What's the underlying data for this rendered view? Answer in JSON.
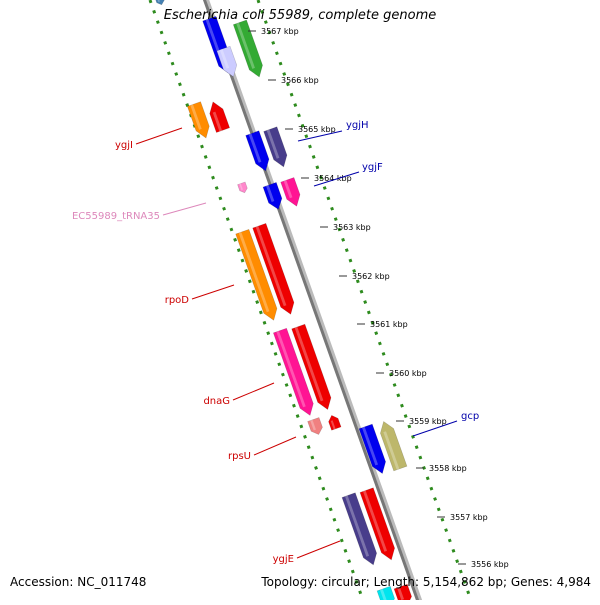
{
  "title": "Escherichia coli 55989, complete genome",
  "footer": {
    "accession": "Accession: NC_011748",
    "topology": "Topology: circular; Length: 5,154,862 bp; Genes: 4,984"
  },
  "ticks": [
    "3567 kbp",
    "3566 kbp",
    "3565 kbp",
    "3564 kbp",
    "3563 kbp",
    "3562 kbp",
    "3561 kbp",
    "3560 kbp",
    "3559 kbp",
    "3558 kbp",
    "3557 kbp",
    "3556 kbp"
  ],
  "colors": {
    "backbone": "#777777",
    "backbone_light": "#bbbbbb",
    "dots": "#2e8b1e",
    "label_red": "#cc0000",
    "label_blue": "#0000aa",
    "label_pink": "#dd88bb"
  },
  "gene_labels": [
    {
      "text": "ygjH",
      "color": "#0000aa"
    },
    {
      "text": "ygjF",
      "color": "#0000aa"
    },
    {
      "text": "ygjI",
      "color": "#cc0000"
    },
    {
      "text": "EC55989_tRNA35",
      "color": "#dd88bb"
    },
    {
      "text": "rpoD",
      "color": "#cc0000"
    },
    {
      "text": "dnaG",
      "color": "#cc0000"
    },
    {
      "text": "gcp",
      "color": "#0000aa"
    },
    {
      "text": "rpsU",
      "color": "#cc0000"
    },
    {
      "text": "ygjE",
      "color": "#cc0000"
    }
  ]
}
